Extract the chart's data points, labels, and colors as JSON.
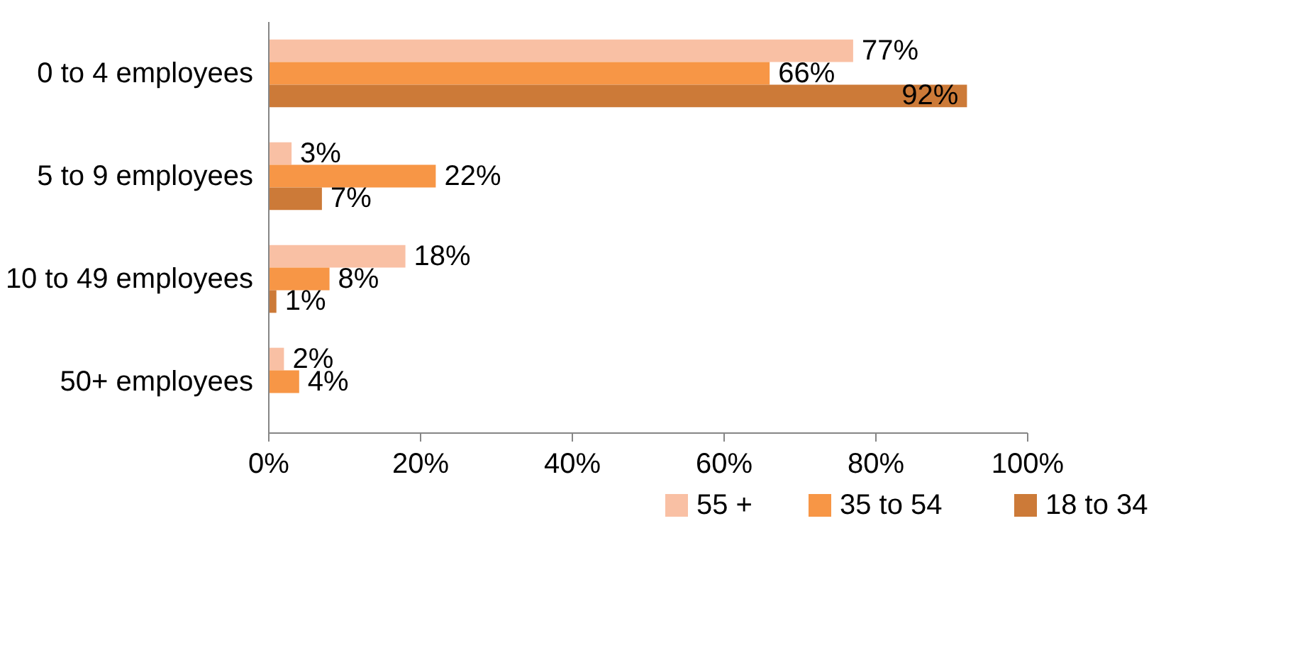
{
  "chart_data": {
    "type": "bar",
    "orientation": "horizontal",
    "categories": [
      "0 to 4 employees",
      "5 to 9 employees",
      "10 to 49 employees",
      "50+ employees"
    ],
    "series": [
      {
        "name": "55 +",
        "color": "#f9c0a4",
        "values": [
          77,
          3,
          18,
          2
        ],
        "value_labels": [
          "77%",
          "3%",
          "18%",
          "2%"
        ]
      },
      {
        "name": "35 to 54",
        "color": "#f79646",
        "values": [
          66,
          22,
          8,
          4
        ],
        "value_labels": [
          "66%",
          "22%",
          "8%",
          "4%"
        ]
      },
      {
        "name": "18 to 34",
        "color": "#cc7a38",
        "values": [
          92,
          7,
          1,
          null
        ],
        "value_labels": [
          "92%",
          "7%",
          "1%",
          null
        ]
      }
    ],
    "xlim": [
      0,
      100
    ],
    "xticks": [
      {
        "value": 0,
        "label": "0%"
      },
      {
        "value": 20,
        "label": "20%"
      },
      {
        "value": 40,
        "label": "40%"
      },
      {
        "value": 60,
        "label": "60%"
      },
      {
        "value": 80,
        "label": "80%"
      },
      {
        "value": 100,
        "label": "100%"
      }
    ],
    "grid": false,
    "legend": "bottom"
  }
}
